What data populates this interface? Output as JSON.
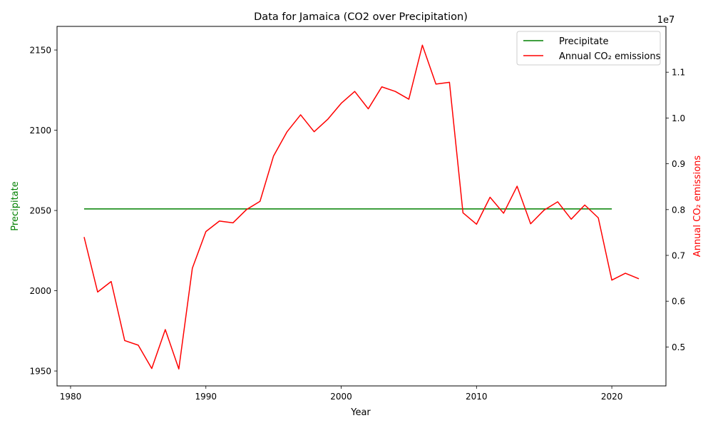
{
  "chart_data": {
    "type": "line",
    "title": "Data for Jamaica (CO2 over Precipitation)",
    "xlabel": "Year",
    "ylabel_left": "Precipitate",
    "ylabel_right": "Annual CO₂ emissions",
    "right_axis_offset_label": "1e7",
    "xlim": [
      1979,
      2024
    ],
    "ylim_left": [
      1940.7,
      2164.7
    ],
    "ylim_right": [
      4150000,
      12000000
    ],
    "x_ticks": [
      1980,
      1990,
      2000,
      2010,
      2020
    ],
    "y_ticks_left": [
      1950,
      2000,
      2050,
      2100,
      2150
    ],
    "y_ticks_right": [
      5000000,
      6000000,
      7000000,
      8000000,
      9000000,
      10000000,
      11000000
    ],
    "y_tick_labels_right": [
      "0.5",
      "0.6",
      "0.7",
      "0.8",
      "0.9",
      "1.0",
      "1.1"
    ],
    "legend_position": "top-right",
    "grid": false,
    "series": [
      {
        "name": "Precipitate",
        "axis": "left",
        "color": "#008000",
        "x": [
          1981,
          1982,
          1983,
          1984,
          1985,
          1986,
          1987,
          1988,
          1989,
          1990,
          1991,
          1992,
          1993,
          1994,
          1995,
          1996,
          1997,
          1998,
          1999,
          2000,
          2001,
          2002,
          2003,
          2004,
          2005,
          2006,
          2007,
          2008,
          2009,
          2010,
          2011,
          2012,
          2013,
          2014,
          2015,
          2016,
          2017,
          2018,
          2019,
          2020
        ],
        "y": [
          2051,
          2051,
          2051,
          2051,
          2051,
          2051,
          2051,
          2051,
          2051,
          2051,
          2051,
          2051,
          2051,
          2051,
          2051,
          2051,
          2051,
          2051,
          2051,
          2051,
          2051,
          2051,
          2051,
          2051,
          2051,
          2051,
          2051,
          2051,
          2051,
          2051,
          2051,
          2051,
          2051,
          2051,
          2051,
          2051,
          2051,
          2051,
          2051,
          2051
        ]
      },
      {
        "name": "Annual CO₂ emissions",
        "axis": "right",
        "color": "#ff0000",
        "x": [
          1981,
          1982,
          1983,
          1984,
          1985,
          1986,
          1987,
          1988,
          1989,
          1990,
          1991,
          1992,
          1993,
          1994,
          1995,
          1996,
          1997,
          1998,
          1999,
          2000,
          2001,
          2002,
          2003,
          2004,
          2005,
          2006,
          2007,
          2008,
          2009,
          2010,
          2011,
          2012,
          2013,
          2014,
          2015,
          2016,
          2017,
          2018,
          2019,
          2020,
          2021,
          2022
        ],
        "y": [
          7400000,
          6200000,
          6430000,
          5140000,
          5040000,
          4530000,
          5380000,
          4520000,
          6720000,
          7520000,
          7750000,
          7710000,
          8000000,
          8180000,
          9170000,
          9700000,
          10070000,
          9700000,
          9970000,
          10320000,
          10580000,
          10200000,
          10680000,
          10580000,
          10410000,
          11590000,
          10740000,
          10780000,
          7930000,
          7680000,
          8270000,
          7920000,
          8510000,
          7690000,
          7990000,
          8170000,
          7790000,
          8100000,
          7820000,
          6460000,
          6610000,
          6490000
        ]
      }
    ]
  }
}
